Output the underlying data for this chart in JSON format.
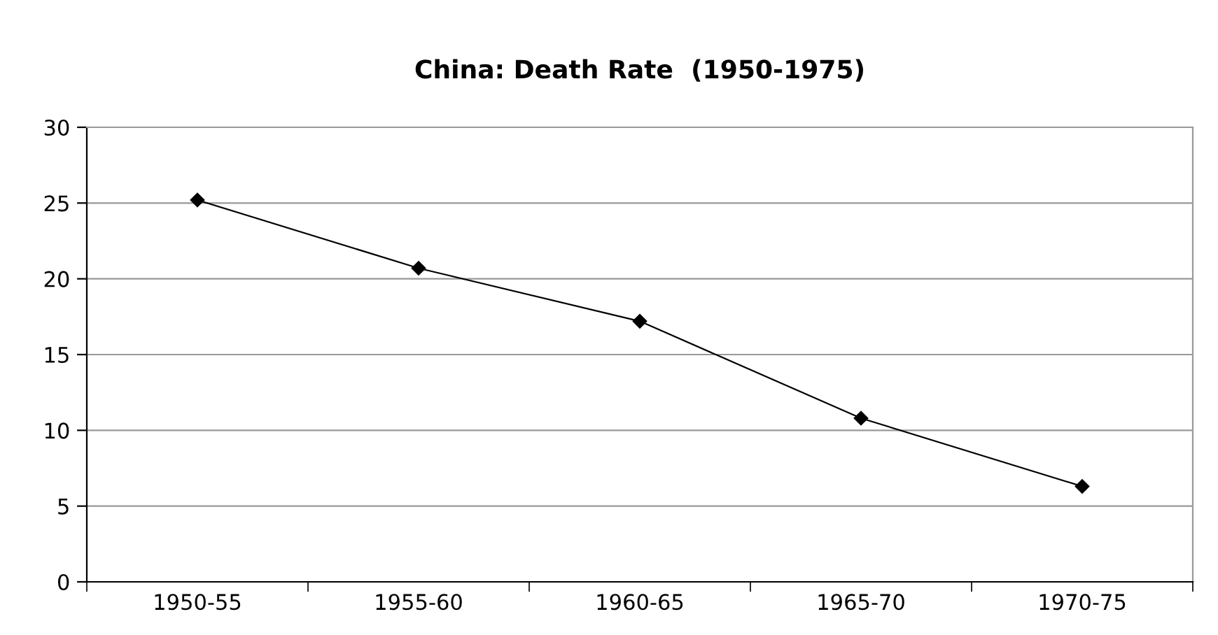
{
  "chart_data": {
    "type": "line",
    "title": "China: Death Rate  (1950-1975)",
    "categories": [
      "1950-55",
      "1955-60",
      "1960-65",
      "1965-70",
      "1970-75"
    ],
    "series": [
      {
        "color": "#000000",
        "values": [
          25.2,
          20.7,
          17.2,
          10.8,
          6.3
        ]
      }
    ],
    "ylim": [
      0,
      30
    ],
    "yticks": [
      0,
      5,
      10,
      15,
      20,
      25,
      30
    ],
    "grid": "y",
    "marker": "diamond",
    "line_style": "solid"
  }
}
